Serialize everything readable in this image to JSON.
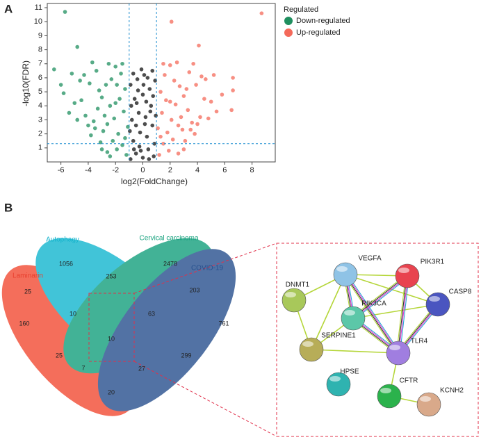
{
  "panels": [
    "A",
    "B"
  ],
  "chart_data": {
    "type": "scatter",
    "xlabel": "log2(FoldChange)",
    "ylabel": "-log10(FDR)",
    "legend_title": "Regulated",
    "legend": "right",
    "xlim": [
      -7,
      9.7
    ],
    "ylim": [
      0,
      11.3
    ],
    "xticks": [
      -6,
      -4,
      -2,
      0,
      2,
      4,
      6,
      8
    ],
    "yticks": [
      1,
      2,
      3,
      4,
      5,
      6,
      7,
      8,
      9,
      10,
      11
    ],
    "threshold_x": [
      -1,
      1
    ],
    "threshold_y": [
      1.3
    ],
    "series": [
      {
        "name": "Down-regulated",
        "color": "#1f8f5f",
        "x": [
          -1.2,
          -1.5,
          -1.8,
          -2.1,
          -2.4,
          -1.3,
          -1.6,
          -2.0,
          -2.7,
          -3.0,
          -3.3,
          -3.6,
          -2.9,
          -2.2,
          -1.9,
          -2.6,
          -3.1,
          -3.8,
          -4.2,
          -4.5,
          -3.9,
          -3.4,
          -2.5,
          -1.4,
          -1.7,
          -2.3,
          -2.8,
          -3.5,
          -4.0,
          -4.8,
          -5.0,
          -5.4,
          -4.6,
          -5.8,
          -6.5,
          -5.7,
          -4.8,
          -6.0,
          -1.1,
          -1.3,
          -2.0,
          -2.6,
          -3.2,
          -3.7,
          -4.3,
          -1.5,
          -1.9,
          -2.4,
          -5.2,
          -3.0
        ],
        "values": [
          0.5,
          1.2,
          2.0,
          3.1,
          4.0,
          5.2,
          6.3,
          6.8,
          5.5,
          4.6,
          3.8,
          2.9,
          2.2,
          1.5,
          0.9,
          0.7,
          1.4,
          1.9,
          3.3,
          4.4,
          5.6,
          6.5,
          7.0,
          3.6,
          4.5,
          5.9,
          3.3,
          2.4,
          2.6,
          3.0,
          4.2,
          3.5,
          5.8,
          4.9,
          6.6,
          10.7,
          8.2,
          5.5,
          2.5,
          1.7,
          4.2,
          2.7,
          5.1,
          7.1,
          6.2,
          7.0,
          5.5,
          0.4,
          6.3,
          0.9
        ]
      },
      {
        "color": "#111111",
        "x": [
          -0.9,
          -0.5,
          0,
          0.4,
          0.8,
          -0.7,
          -0.2,
          0.3,
          0.7,
          -0.8,
          -0.3,
          0.2,
          0.6,
          -0.6,
          0,
          0.5,
          -0.9,
          -0.4,
          0.1,
          0.7,
          -0.1,
          0.9,
          -0.7,
          0.35,
          -0.5,
          0.15,
          0.85,
          -0.25,
          0.55,
          -0.85,
          0.05,
          -0.45,
          0.75,
          -0.15,
          0.45,
          -0.95,
          0.25,
          -0.65,
          0.95,
          -0.35
        ],
        "values": [
          0.2,
          0.6,
          0.3,
          0.9,
          0.4,
          1.5,
          2.1,
          1.8,
          2.6,
          3.0,
          3.5,
          3.2,
          4.0,
          4.5,
          4.8,
          5.2,
          5.5,
          5.9,
          6.2,
          6.5,
          6.6,
          5.8,
          6.3,
          6.0,
          2.6,
          2.7,
          1.3,
          1.1,
          3.6,
          4.0,
          5.5,
          4.2,
          4.7,
          0.8,
          0.2,
          2.2,
          4.3,
          0.9,
          3.3,
          5.1
        ]
      },
      {
        "name": "Up-regulated",
        "color": "#f4695a",
        "x": [
          1.2,
          1.5,
          1.8,
          2.1,
          2.4,
          1.3,
          1.6,
          2.0,
          2.7,
          3.0,
          3.3,
          3.6,
          2.9,
          2.2,
          1.9,
          2.6,
          3.1,
          3.8,
          4.2,
          4.5,
          3.9,
          3.4,
          2.5,
          1.4,
          1.7,
          2.3,
          2.8,
          3.5,
          4.0,
          4.8,
          5.0,
          5.4,
          4.6,
          5.8,
          8.7,
          2.1,
          4.1,
          6.6,
          6.6,
          6.5,
          1.1,
          1.3,
          2.0,
          2.6,
          3.2,
          3.7,
          4.3,
          1.5,
          5.2,
          3.0
        ],
        "values": [
          0.5,
          1.3,
          2.1,
          3.0,
          4.1,
          5.0,
          6.2,
          6.9,
          5.4,
          4.7,
          3.7,
          2.8,
          2.3,
          1.6,
          0.8,
          0.6,
          1.5,
          2.0,
          3.2,
          4.5,
          5.5,
          6.4,
          7.1,
          3.5,
          4.4,
          5.8,
          3.2,
          2.3,
          2.7,
          3.1,
          4.3,
          3.6,
          5.9,
          4.8,
          10.6,
          10.0,
          8.3,
          6.0,
          5.1,
          3.7,
          2.4,
          1.8,
          4.3,
          2.6,
          5.2,
          7.0,
          6.1,
          7.0,
          6.2,
          0.9
        ]
      }
    ]
  },
  "venn": {
    "sets": [
      "Laminarin",
      "Autophagy",
      "Cervical carcinoma",
      "COVID-19"
    ],
    "counts": [
      "1056",
      "2478",
      "253",
      "25",
      "203",
      "160",
      "10",
      "63",
      "761",
      "10",
      "25",
      "299",
      "7",
      "27",
      "20"
    ]
  },
  "network": {
    "nodes": [
      "VEGFA",
      "PIK3R1",
      "DNMT1",
      "CASP8",
      "PIK3CA",
      "SERPINE1",
      "TLR4",
      "HPSE",
      "CFTR",
      "KCNH2"
    ]
  }
}
